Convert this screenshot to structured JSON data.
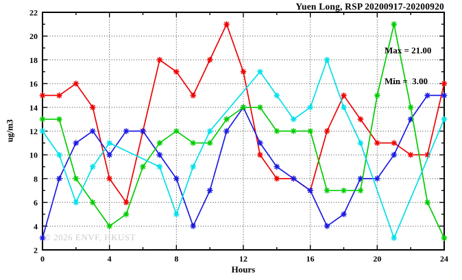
{
  "chart_data": {
    "type": "line",
    "title": "Yuen Long, RSP 20200917-20200920",
    "xlabel": "Hours",
    "ylabel": "ug/m3",
    "xlim": [
      0,
      24
    ],
    "ylim": [
      2,
      22
    ],
    "x_tick_values": [
      0,
      4,
      8,
      12,
      16,
      20,
      24
    ],
    "x_tick_labels": [
      "0",
      "4",
      "8",
      "12",
      "16",
      "20",
      "24"
    ],
    "y_tick_values": [
      2,
      4,
      6,
      8,
      10,
      12,
      14,
      16,
      18,
      20,
      22
    ],
    "y_tick_labels": [
      "2",
      "4",
      "6",
      "8",
      "10",
      "12",
      "14",
      "16",
      "18",
      "20",
      "22"
    ],
    "grid": true,
    "legend": "none",
    "marker": "asterisk",
    "annotations": {
      "max_label": "Max = 21.00",
      "min_label": "Min =  3.00"
    },
    "watermark": "© 2026 ENVF, HKUST",
    "stats": {
      "max": 21.0,
      "min": 3.0
    },
    "x": [
      0,
      1,
      2,
      3,
      4,
      5,
      6,
      7,
      8,
      9,
      10,
      11,
      12,
      13,
      14,
      15,
      16,
      17,
      18,
      19,
      20,
      21,
      22,
      23,
      24
    ],
    "series": [
      {
        "name": "red",
        "color": "#ee0000",
        "values": [
          15,
          15,
          16,
          14,
          8,
          6,
          12,
          18,
          17,
          15,
          18,
          21,
          17,
          10,
          8,
          8,
          7,
          12,
          15,
          13,
          11,
          11,
          10,
          10,
          16
        ]
      },
      {
        "name": "blue",
        "color": "#1a1ae0",
        "values": [
          3,
          8,
          11,
          12,
          10,
          12,
          12,
          10,
          8,
          4,
          7,
          12,
          14,
          11,
          9,
          8,
          7,
          4,
          5,
          8,
          8,
          10,
          13,
          15,
          15
        ]
      },
      {
        "name": "green",
        "color": "#00cc00",
        "values": [
          13,
          13,
          8,
          6,
          4,
          5,
          9,
          11,
          12,
          11,
          11,
          13,
          14,
          14,
          12,
          12,
          12,
          7,
          7,
          7,
          15,
          21,
          14,
          6,
          3
        ]
      },
      {
        "name": "cyan",
        "color": "#00e0e8",
        "values": [
          12,
          10,
          6,
          9,
          11,
          null,
          null,
          9,
          5,
          9,
          12,
          null,
          null,
          17,
          15,
          13,
          14,
          18,
          14,
          11,
          null,
          3,
          null,
          null,
          13
        ]
      }
    ]
  }
}
